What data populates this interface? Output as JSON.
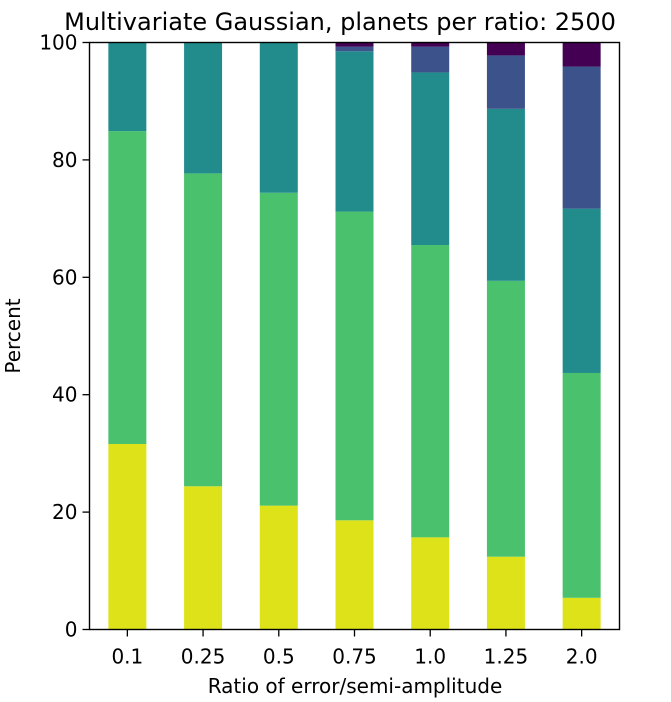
{
  "chart_data": {
    "type": "bar",
    "stacked": true,
    "title": "Multivariate Gaussian, planets per ratio: 2500",
    "xlabel": "Ratio of error/semi-amplitude",
    "ylabel": "Percent",
    "ylim": [
      0,
      100
    ],
    "yticks": [
      "0",
      "20",
      "40",
      "60",
      "80",
      "100"
    ],
    "categories": [
      "0.1",
      "0.25",
      "0.5",
      "0.75",
      "1.0",
      "1.25",
      "2.0"
    ],
    "grid": false,
    "legend": "none",
    "series": [
      {
        "color": "#dde318",
        "values": [
          31.6,
          24.4,
          21.1,
          18.6,
          15.7,
          12.4,
          5.4
        ]
      },
      {
        "color": "#4ac16d",
        "values": [
          53.3,
          53.3,
          53.3,
          52.6,
          49.8,
          47.0,
          38.3
        ]
      },
      {
        "color": "#228c8d",
        "values": [
          15.1,
          22.3,
          25.6,
          27.3,
          29.4,
          29.3,
          28.0
        ]
      },
      {
        "color": "#3b528b",
        "values": [
          0.0,
          0.0,
          0.0,
          0.8,
          4.4,
          9.1,
          24.2
        ]
      },
      {
        "color": "#440154",
        "values": [
          0.0,
          0.0,
          0.0,
          0.7,
          0.7,
          2.2,
          4.1
        ]
      }
    ]
  }
}
